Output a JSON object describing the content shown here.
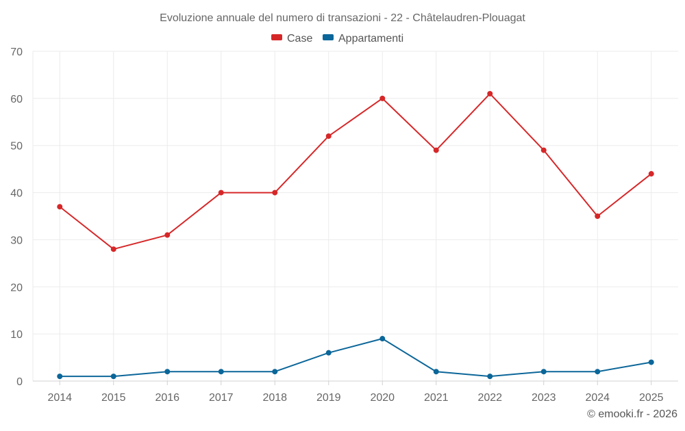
{
  "chart_data": {
    "type": "line",
    "title": "Evoluzione annuale del numero di transazioni - 22 - Châtelaudren-Plouagat",
    "categories": [
      "2014",
      "2015",
      "2016",
      "2017",
      "2018",
      "2019",
      "2020",
      "2021",
      "2022",
      "2023",
      "2024",
      "2025"
    ],
    "series": [
      {
        "name": "Case",
        "color": "#d62728",
        "values": [
          37,
          28,
          31,
          40,
          40,
          52,
          60,
          49,
          61,
          49,
          35,
          44
        ]
      },
      {
        "name": "Appartamenti",
        "color": "#0b6699",
        "values": [
          1,
          1,
          2,
          2,
          2,
          6,
          9,
          2,
          1,
          2,
          2,
          4
        ]
      }
    ],
    "ylim": [
      0,
      70
    ],
    "yticks": [
      "0",
      "10",
      "20",
      "30",
      "40",
      "50",
      "60",
      "70"
    ],
    "grid": true,
    "legend": "top-center",
    "xlabel": "",
    "ylabel": ""
  },
  "credit": "© emooki.fr - 2026"
}
